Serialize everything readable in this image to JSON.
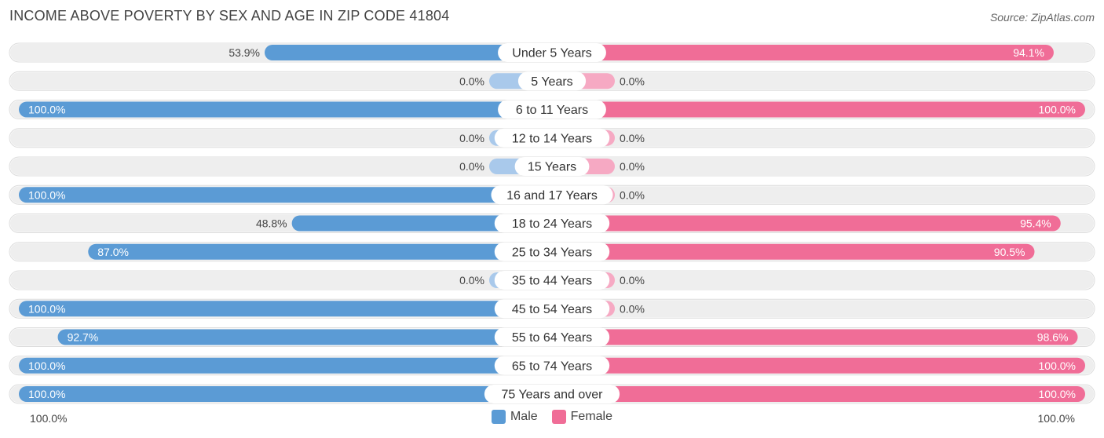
{
  "title": "INCOME ABOVE POVERTY BY SEX AND AGE IN ZIP CODE 41804",
  "source": "Source: ZipAtlas.com",
  "colors": {
    "male": "#5b9bd5",
    "male_light": "#a9c9eb",
    "female": "#f06d97",
    "female_light": "#f6a9c3",
    "row_bg": "#eeeeee"
  },
  "legend": {
    "male": "Male",
    "female": "Female"
  },
  "axis": {
    "left_label": "100.0%",
    "right_label": "100.0%"
  },
  "chart_data": {
    "type": "bar",
    "orientation": "horizontal-diverging",
    "title": "INCOME ABOVE POVERTY BY SEX AND AGE IN ZIP CODE 41804",
    "categories": [
      "Under 5 Years",
      "5 Years",
      "6 to 11 Years",
      "12 to 14 Years",
      "15 Years",
      "16 and 17 Years",
      "18 to 24 Years",
      "25 to 34 Years",
      "35 to 44 Years",
      "45 to 54 Years",
      "55 to 64 Years",
      "65 to 74 Years",
      "75 Years and over"
    ],
    "series": [
      {
        "name": "Male",
        "values": [
          53.9,
          0.0,
          100.0,
          0.0,
          0.0,
          100.0,
          48.8,
          87.0,
          0.0,
          100.0,
          92.7,
          100.0,
          100.0
        ],
        "labels": [
          "53.9%",
          "0.0%",
          "100.0%",
          "0.0%",
          "0.0%",
          "100.0%",
          "48.8%",
          "87.0%",
          "0.0%",
          "100.0%",
          "92.7%",
          "100.0%",
          "100.0%"
        ]
      },
      {
        "name": "Female",
        "values": [
          94.1,
          0.0,
          100.0,
          0.0,
          0.0,
          0.0,
          95.4,
          90.5,
          0.0,
          0.0,
          98.6,
          100.0,
          100.0
        ],
        "labels": [
          "94.1%",
          "0.0%",
          "100.0%",
          "0.0%",
          "0.0%",
          "0.0%",
          "95.4%",
          "90.5%",
          "0.0%",
          "0.0%",
          "98.6%",
          "100.0%",
          "100.0%"
        ]
      }
    ],
    "xlim": [
      0,
      100
    ],
    "legend_position": "bottom-center"
  }
}
